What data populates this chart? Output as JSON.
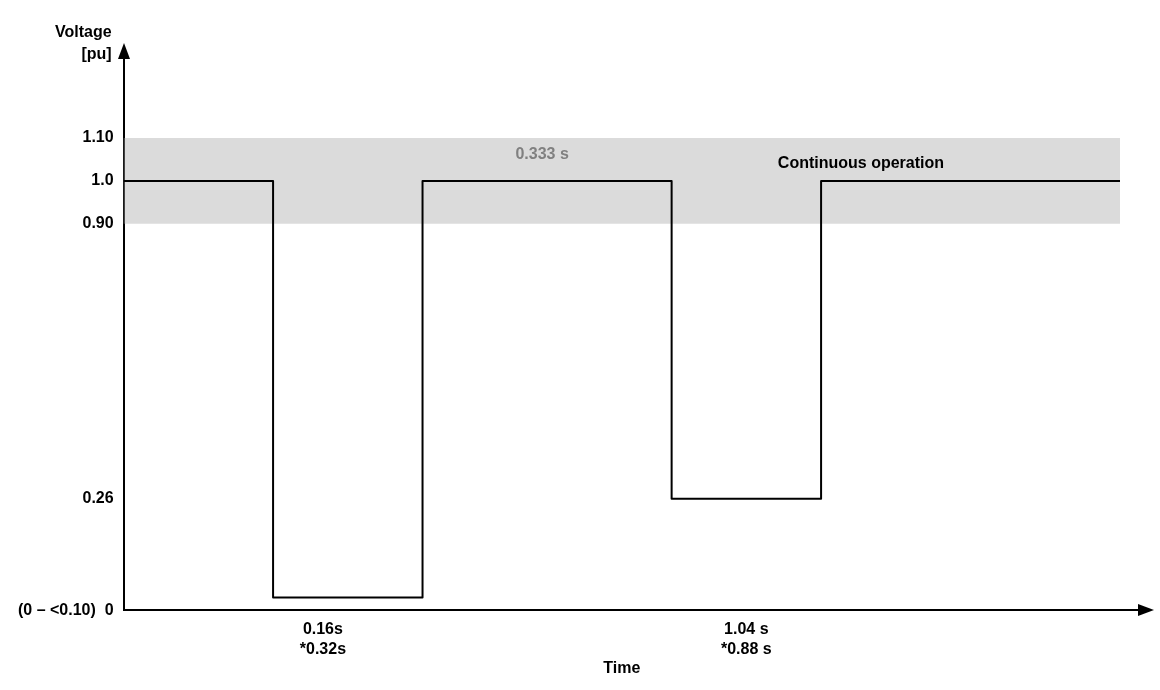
{
  "chart_data": {
    "type": "step",
    "xlabel": "Time",
    "ylabel": "Voltage [pu]",
    "categories": [
      null,
      null,
      null,
      null,
      null,
      null,
      null,
      null,
      "0.16s\n*0.32s",
      null,
      null,
      null,
      null,
      null,
      null,
      null,
      null,
      null,
      null,
      null,
      null,
      null,
      null,
      null,
      null,
      "1.04 s\n*0.88 s",
      null,
      null,
      null,
      null,
      null,
      null,
      null,
      null,
      null,
      null,
      null,
      null,
      null,
      null,
      null
    ],
    "series": [
      {
        "color": "#000000",
        "values": [
          1.0,
          1.0,
          1.0,
          1.0,
          1.0,
          1.0,
          0.03,
          0.03,
          0.03,
          0.03,
          0.03,
          0.03,
          1.0,
          1.0,
          1.0,
          1.0,
          1.0,
          1.0,
          1.0,
          1.0,
          1.0,
          1.0,
          0.26,
          0.26,
          0.26,
          0.26,
          0.26,
          0.26,
          1.0,
          1.0,
          1.0,
          1.0,
          1.0,
          1.0,
          1.0,
          1.0,
          1.0,
          1.0,
          1.0,
          1.0,
          1.0
        ]
      }
    ],
    "ylim": [
      0,
      1.2
    ],
    "yticks": [
      {
        "value": 0,
        "label": "(0 – <0.10)  0"
      },
      0.26,
      {
        "value": 0.9,
        "label": "0.90"
      },
      {
        "value": 1.0,
        "label": "1.0"
      },
      {
        "value": 1.1,
        "label": "1.10"
      }
    ],
    "bands": [
      {
        "axis": "y",
        "from": 0.9,
        "to": 1.1,
        "label": "Continuous operation",
        "color": "#a6a6a6"
      }
    ],
    "annotations": [
      "0.333 s"
    ],
    "grid": false,
    "legend": false
  }
}
